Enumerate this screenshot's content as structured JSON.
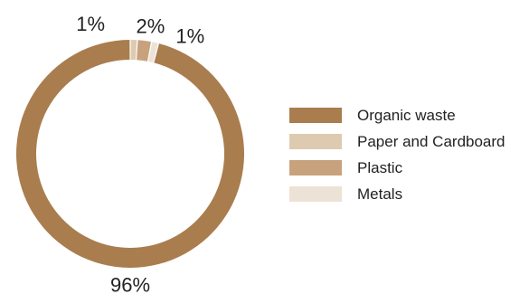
{
  "chart_data": {
    "type": "pie",
    "donut": true,
    "start_angle_deg": 0,
    "direction": "clockwise",
    "series": [
      {
        "name": "Organic waste",
        "value": 96,
        "label": "96%",
        "color": "#A97D4E"
      },
      {
        "name": "Paper and Cardboard",
        "value": 1,
        "label": "1%",
        "color": "#DECAB0"
      },
      {
        "name": "Plastic",
        "value": 2,
        "label": "2%",
        "color": "#C7A27C"
      },
      {
        "name": "Metals",
        "value": 1,
        "label": "1%",
        "color": "#EDE2D6"
      }
    ],
    "slice_order": [
      "Paper and Cardboard",
      "Plastic",
      "Metals",
      "Organic waste"
    ],
    "legend": {
      "position": "right",
      "entries": [
        {
          "label": "Organic waste",
          "color": "#A97D4E"
        },
        {
          "label": "Paper and Cardboard",
          "color": "#DECAB0"
        },
        {
          "label": "Plastic",
          "color": "#C7A27C"
        },
        {
          "label": "Metals",
          "color": "#EDE2D6"
        }
      ]
    }
  }
}
